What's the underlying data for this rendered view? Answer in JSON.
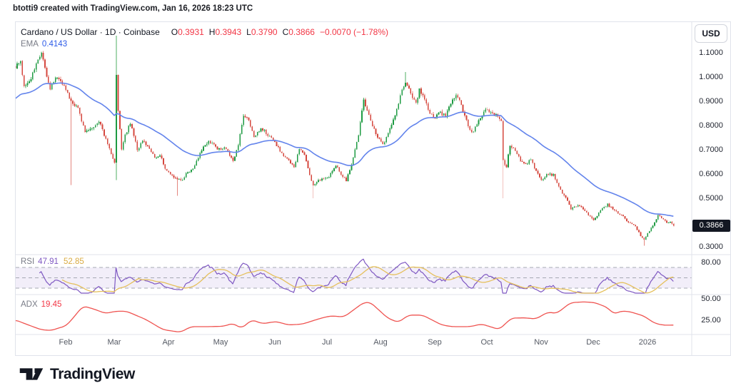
{
  "attribution": "btotti9 created with TradingView.com, Jan 16, 2026 18:23 UTC",
  "symbol": {
    "title": "Cardano / US Dollar · 1D · Coinbase",
    "ohlc": [
      {
        "label": "O",
        "value": "0.3931"
      },
      {
        "label": "H",
        "value": "0.3943"
      },
      {
        "label": "L",
        "value": "0.3790"
      },
      {
        "label": "C",
        "value": "0.3866"
      }
    ],
    "change": "−0.0070 (−1.78%)"
  },
  "ema": {
    "label": "EMA",
    "value": "0.4143"
  },
  "rsi": {
    "label": "RSI",
    "value": "47.91",
    "ma_value": "52.85",
    "axis_tick": "80.00"
  },
  "adx": {
    "label": "ADX",
    "value": "19.45",
    "tick_upper": "50.00",
    "tick_lower": "25.00"
  },
  "price_axis": {
    "currency": "USD",
    "last_price": "0.3866",
    "ticks": [
      {
        "label": "1.1000",
        "price": 1.1
      },
      {
        "label": "1.0000",
        "price": 1.0
      },
      {
        "label": "0.9000",
        "price": 0.9
      },
      {
        "label": "0.8000",
        "price": 0.8
      },
      {
        "label": "0.7000",
        "price": 0.7
      },
      {
        "label": "0.6000",
        "price": 0.6
      },
      {
        "label": "0.5000",
        "price": 0.5
      },
      {
        "label": "0.3000",
        "price": 0.3
      }
    ]
  },
  "time_axis": {
    "labels": [
      {
        "text": "Feb",
        "day": 29
      },
      {
        "text": "Mar",
        "day": 57
      },
      {
        "text": "Apr",
        "day": 88
      },
      {
        "text": "May",
        "day": 118
      },
      {
        "text": "Jun",
        "day": 149
      },
      {
        "text": "Jul",
        "day": 179
      },
      {
        "text": "Aug",
        "day": 210
      },
      {
        "text": "Sep",
        "day": 241
      },
      {
        "text": "Oct",
        "day": 271
      },
      {
        "text": "Nov",
        "day": 302
      },
      {
        "text": "Dec",
        "day": 332
      },
      {
        "text": "2026",
        "day": 363
      }
    ]
  },
  "logo": {
    "text": "TradingView"
  },
  "colors": {
    "up_body": "#1e9b43",
    "down_body": "#d5473e",
    "up_wick": "#4faf63",
    "down_wick": "#e4867f",
    "ema_line": "#6384ec",
    "ema_text": "#2d5be8",
    "rsi_line": "#7e57c2",
    "rsi_ma_line": "#e5c05c",
    "rsi_band_fill": "rgba(126,87,194,0.10)",
    "dashed_level": "#a6a9b3",
    "adx_line": "#ef5350",
    "text_red": "#f23645",
    "text_dark": "#131722",
    "text_gray": "#787b86",
    "border": "#e0e3eb",
    "badge_bg": "#131722"
  },
  "chart_data": {
    "type": "candlestick",
    "title": "Cardano / US Dollar, 1D, Coinbase — with EMA, RSI(14)+MA, ADX panes",
    "days_total": 379,
    "price_axis_range_visible": [
      0.27,
      1.23
    ],
    "last_candle": {
      "open": 0.3931,
      "high": 0.3943,
      "low": 0.379,
      "close": 0.3866
    },
    "ema_period": 50,
    "ema_seed": 0.905,
    "ema_last": 0.4143,
    "rsi_period": 14,
    "rsi_ma_period": 14,
    "rsi_levels": [
      70,
      50,
      30
    ],
    "rsi_last": 47.91,
    "rsi_ma_last": 52.85,
    "adx_last": 19.45,
    "close_anchors": [
      [
        0,
        1.04
      ],
      [
        3,
        1.07
      ],
      [
        5,
        0.96
      ],
      [
        9,
        1.0
      ],
      [
        12,
        1.06
      ],
      [
        15,
        1.095
      ],
      [
        18,
        1.0
      ],
      [
        20,
        0.945
      ],
      [
        23,
        1.0
      ],
      [
        27,
        0.975
      ],
      [
        32,
        0.9
      ],
      [
        36,
        0.87
      ],
      [
        40,
        0.775
      ],
      [
        44,
        0.79
      ],
      [
        48,
        0.82
      ],
      [
        51,
        0.76
      ],
      [
        54,
        0.705
      ],
      [
        57,
        0.645
      ],
      [
        58,
        1.0
      ],
      [
        59,
        0.86
      ],
      [
        61,
        0.7
      ],
      [
        63,
        0.76
      ],
      [
        66,
        0.81
      ],
      [
        70,
        0.7
      ],
      [
        73,
        0.735
      ],
      [
        77,
        0.71
      ],
      [
        80,
        0.665
      ],
      [
        83,
        0.675
      ],
      [
        86,
        0.625
      ],
      [
        90,
        0.59
      ],
      [
        93,
        0.575
      ],
      [
        96,
        0.575
      ],
      [
        98,
        0.6
      ],
      [
        102,
        0.625
      ],
      [
        107,
        0.7
      ],
      [
        111,
        0.74
      ],
      [
        116,
        0.7
      ],
      [
        120,
        0.71
      ],
      [
        123,
        0.68
      ],
      [
        125,
        0.65
      ],
      [
        128,
        0.72
      ],
      [
        131,
        0.84
      ],
      [
        134,
        0.82
      ],
      [
        137,
        0.755
      ],
      [
        141,
        0.79
      ],
      [
        144,
        0.77
      ],
      [
        149,
        0.73
      ],
      [
        153,
        0.685
      ],
      [
        157,
        0.655
      ],
      [
        160,
        0.625
      ],
      [
        163,
        0.7
      ],
      [
        166,
        0.675
      ],
      [
        169,
        0.6
      ],
      [
        171,
        0.55
      ],
      [
        174,
        0.575
      ],
      [
        178,
        0.58
      ],
      [
        181,
        0.6
      ],
      [
        184,
        0.635
      ],
      [
        187,
        0.6
      ],
      [
        190,
        0.575
      ],
      [
        193,
        0.64
      ],
      [
        197,
        0.76
      ],
      [
        200,
        0.905
      ],
      [
        202,
        0.86
      ],
      [
        205,
        0.8
      ],
      [
        208,
        0.755
      ],
      [
        211,
        0.72
      ],
      [
        213,
        0.755
      ],
      [
        216,
        0.8
      ],
      [
        219,
        0.87
      ],
      [
        221,
        0.92
      ],
      [
        224,
        0.985
      ],
      [
        227,
        0.93
      ],
      [
        230,
        0.9
      ],
      [
        232,
        0.945
      ],
      [
        234,
        0.92
      ],
      [
        238,
        0.855
      ],
      [
        241,
        0.83
      ],
      [
        243,
        0.855
      ],
      [
        247,
        0.84
      ],
      [
        250,
        0.885
      ],
      [
        253,
        0.93
      ],
      [
        256,
        0.88
      ],
      [
        259,
        0.82
      ],
      [
        262,
        0.77
      ],
      [
        265,
        0.8
      ],
      [
        268,
        0.845
      ],
      [
        270,
        0.87
      ],
      [
        273,
        0.855
      ],
      [
        277,
        0.835
      ],
      [
        279,
        0.82
      ],
      [
        280,
        0.655
      ],
      [
        282,
        0.63
      ],
      [
        284,
        0.72
      ],
      [
        287,
        0.695
      ],
      [
        290,
        0.655
      ],
      [
        293,
        0.64
      ],
      [
        296,
        0.665
      ],
      [
        299,
        0.61
      ],
      [
        302,
        0.575
      ],
      [
        305,
        0.6
      ],
      [
        309,
        0.595
      ],
      [
        312,
        0.545
      ],
      [
        316,
        0.5
      ],
      [
        319,
        0.455
      ],
      [
        323,
        0.475
      ],
      [
        326,
        0.455
      ],
      [
        329,
        0.43
      ],
      [
        332,
        0.41
      ],
      [
        335,
        0.44
      ],
      [
        338,
        0.465
      ],
      [
        340,
        0.475
      ],
      [
        343,
        0.455
      ],
      [
        346,
        0.44
      ],
      [
        349,
        0.425
      ],
      [
        352,
        0.4
      ],
      [
        356,
        0.385
      ],
      [
        359,
        0.345
      ],
      [
        361,
        0.33
      ],
      [
        364,
        0.365
      ],
      [
        367,
        0.4
      ],
      [
        369,
        0.43
      ],
      [
        371,
        0.42
      ],
      [
        374,
        0.4
      ],
      [
        376,
        0.405
      ],
      [
        378,
        0.3866
      ]
    ],
    "wick_overrides": {
      "32": {
        "low": 0.555
      },
      "58": {
        "high": 1.17,
        "low": 0.575
      },
      "93": {
        "low": 0.51
      },
      "171": {
        "low": 0.5
      },
      "224": {
        "high": 1.02
      },
      "280": {
        "low": 0.5
      },
      "361": {
        "low": 0.305
      }
    },
    "adx_anchors": [
      [
        0,
        25.5
      ],
      [
        7,
        20
      ],
      [
        15,
        14
      ],
      [
        21,
        13
      ],
      [
        25,
        16
      ],
      [
        29,
        18
      ],
      [
        31,
        22
      ],
      [
        39,
        41.5
      ],
      [
        44,
        39
      ],
      [
        52,
        33
      ],
      [
        58,
        35.5
      ],
      [
        64,
        35.5
      ],
      [
        75,
        26
      ],
      [
        85,
        14
      ],
      [
        95,
        11
      ],
      [
        101,
        17.5
      ],
      [
        111,
        17.5
      ],
      [
        120,
        18
      ],
      [
        125,
        21.5
      ],
      [
        130,
        15.5
      ],
      [
        136,
        25.5
      ],
      [
        142,
        21
      ],
      [
        150,
        23.5
      ],
      [
        157,
        19.5
      ],
      [
        165,
        20.5
      ],
      [
        175,
        27
      ],
      [
        181,
        30
      ],
      [
        189,
        29
      ],
      [
        200,
        45.5
      ],
      [
        204,
        46
      ],
      [
        214,
        27.5
      ],
      [
        220,
        22.5
      ],
      [
        226,
        31
      ],
      [
        234,
        31
      ],
      [
        245,
        19.5
      ],
      [
        251,
        17.5
      ],
      [
        261,
        17.5
      ],
      [
        268,
        20.5
      ],
      [
        278,
        14.2
      ],
      [
        285,
        27.5
      ],
      [
        293,
        27.8
      ],
      [
        299,
        26.5
      ],
      [
        306,
        34.5
      ],
      [
        311,
        33
      ],
      [
        319,
        45.5
      ],
      [
        327,
        46.5
      ],
      [
        333,
        45.5
      ],
      [
        340,
        40
      ],
      [
        344,
        32
      ],
      [
        348,
        35.8
      ],
      [
        353,
        35
      ],
      [
        361,
        30
      ],
      [
        367,
        21.7
      ],
      [
        372,
        19.3
      ],
      [
        376,
        19.2
      ],
      [
        378,
        19.45
      ]
    ]
  }
}
